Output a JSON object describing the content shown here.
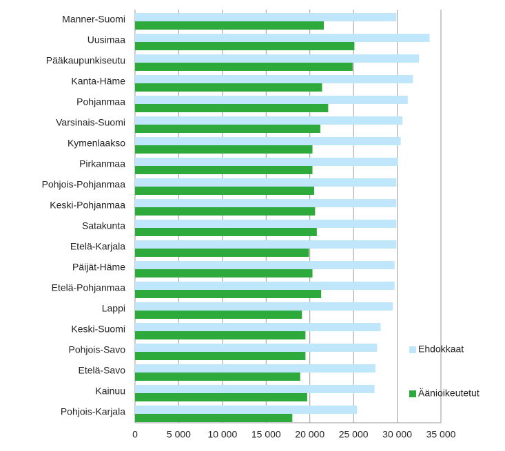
{
  "chart_data": {
    "type": "hbar",
    "categories": [
      "Manner-Suomi",
      "Uusimaa",
      "Pääkaupunkiseutu",
      "Kanta-Häme",
      "Pohjanmaa",
      "Varsinais-Suomi",
      "Kymenlaakso",
      "Pirkanmaa",
      "Pohjois-Pohjanmaa",
      "Keski-Pohjanmaa",
      "Satakunta",
      "Etelä-Karjala",
      "Päijät-Häme",
      "Etelä-Pohjanmaa",
      "Lappi",
      "Keski-Suomi",
      "Pohjois-Savo",
      "Etelä-Savo",
      "Kainuu",
      "Pohjois-Karjala"
    ],
    "series": [
      {
        "name": "Ehdokkaat",
        "color": "#bfe6fb",
        "values": [
          29900,
          33700,
          32500,
          31800,
          31200,
          30600,
          30400,
          30100,
          29900,
          29900,
          29900,
          29900,
          29700,
          29700,
          29500,
          28100,
          27700,
          27500,
          27400,
          25400
        ]
      },
      {
        "name": "Äänioikeutetut",
        "color": "#2eaa3c",
        "values": [
          21600,
          25100,
          24900,
          21400,
          22100,
          21200,
          20300,
          20300,
          20500,
          20600,
          20800,
          19900,
          20300,
          21300,
          19100,
          19500,
          19500,
          18900,
          19700,
          18000
        ]
      }
    ],
    "xlim": [
      0,
      35000
    ],
    "xticks": [
      0,
      {
        "value": 5000,
        "label": "5 000"
      },
      {
        "value": 10000,
        "label": "10 000"
      },
      {
        "value": 15000,
        "label": "15 000"
      },
      {
        "value": 20000,
        "label": "20 000"
      },
      {
        "value": 25000,
        "label": "25 000"
      },
      {
        "value": 30000,
        "label": "30 000"
      },
      {
        "value": 35000,
        "label": "35 000"
      }
    ],
    "grid": true,
    "legend": "right"
  }
}
